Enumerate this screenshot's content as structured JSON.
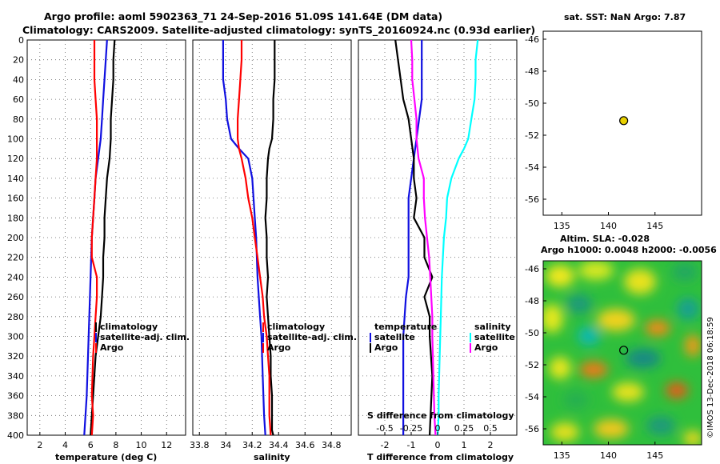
{
  "figure": {
    "title_line1": "Argo profile: aoml 5902363_71 24-Sep-2016 51.09S 141.64E (DM data)",
    "title_line2": "Climatology: CARS2009. Satellite-adjusted climatology: synTS_20160924.nc (0.93d earlier)",
    "credit": "©IMOS 13-Dec-2018 06:18:59"
  },
  "colors": {
    "climatology": "#000000",
    "satellite": "#1010e0",
    "argo": "#ff0000",
    "sat_diff": "#00ffff",
    "argo_s": "#ff00ff",
    "dot": "#e8d000"
  },
  "chart_data": [
    {
      "id": "temperature",
      "type": "line",
      "xlabel": "temperature (deg C)",
      "ylabel": "",
      "xlim": [
        1,
        13.5
      ],
      "ylim": [
        400,
        0
      ],
      "xticks": [
        2,
        4,
        6,
        8,
        10,
        12
      ],
      "yticks": [
        0,
        20,
        40,
        60,
        80,
        100,
        120,
        140,
        160,
        180,
        200,
        220,
        240,
        260,
        280,
        300,
        320,
        340,
        360,
        380,
        400
      ],
      "legend": [
        "climatology",
        "satellite-adj. clim.",
        "Argo"
      ],
      "series": [
        {
          "name": "climatology",
          "color": "black",
          "x": [
            7.9,
            7.8,
            7.8,
            7.7,
            7.6,
            7.6,
            7.5,
            7.3,
            7.2,
            7.1,
            7.1,
            7.0,
            7.0,
            6.9,
            6.8,
            6.6,
            6.4,
            6.2,
            6.0
          ],
          "y": [
            0,
            20,
            40,
            60,
            80,
            100,
            120,
            140,
            160,
            180,
            200,
            220,
            240,
            260,
            280,
            300,
            320,
            360,
            400
          ]
        },
        {
          "name": "satellite-adj. clim.",
          "color": "blue",
          "x": [
            7.3,
            7.2,
            7.1,
            7.0,
            6.9,
            6.8,
            6.6,
            6.4,
            6.3,
            6.2,
            6.1,
            6.0,
            5.9,
            5.8,
            5.7,
            5.5
          ],
          "y": [
            0,
            20,
            40,
            60,
            80,
            100,
            120,
            140,
            160,
            180,
            200,
            240,
            280,
            320,
            360,
            400
          ]
        },
        {
          "name": "Argo",
          "color": "red",
          "x": [
            6.3,
            6.3,
            6.3,
            6.4,
            6.5,
            6.5,
            6.5,
            6.4,
            6.3,
            6.2,
            6.1,
            6.1,
            6.5,
            6.5,
            6.4,
            6.3,
            6.2,
            6.1,
            6.2,
            6.1
          ],
          "y": [
            0,
            20,
            40,
            60,
            80,
            100,
            120,
            140,
            160,
            180,
            200,
            220,
            240,
            260,
            280,
            300,
            320,
            360,
            380,
            400
          ]
        }
      ]
    },
    {
      "id": "salinity",
      "type": "line",
      "xlabel": "salinity",
      "ylabel": "",
      "xlim": [
        33.75,
        34.95
      ],
      "ylim": [
        400,
        0
      ],
      "xticks": [
        33.8,
        34.0,
        34.2,
        34.4,
        34.6,
        34.8
      ],
      "xticklabels": [
        "33.8",
        "34",
        "34.2",
        "34.4",
        "34.6",
        "34.8"
      ],
      "legend": [
        "climatology",
        "satellite-adj. clim.",
        "Argo"
      ],
      "series": [
        {
          "name": "climatology",
          "color": "black",
          "x": [
            34.37,
            34.37,
            34.37,
            34.36,
            34.36,
            34.35,
            34.33,
            34.32,
            34.31,
            34.31,
            34.3,
            34.31,
            34.31,
            34.32,
            34.31,
            34.32,
            34.33,
            34.34,
            34.34,
            34.35,
            34.35,
            34.35,
            34.36
          ],
          "y": [
            0,
            20,
            40,
            60,
            80,
            100,
            110,
            120,
            140,
            160,
            180,
            200,
            220,
            240,
            260,
            280,
            300,
            320,
            340,
            360,
            380,
            395,
            400
          ]
        },
        {
          "name": "satellite-adj. clim.",
          "color": "blue",
          "x": [
            33.98,
            33.98,
            33.98,
            34.0,
            34.01,
            34.04,
            34.1,
            34.17,
            34.2,
            34.21,
            34.22,
            34.23,
            34.24,
            34.25,
            34.26,
            34.27,
            34.28,
            34.29,
            34.3
          ],
          "y": [
            0,
            20,
            40,
            60,
            80,
            100,
            110,
            120,
            140,
            160,
            180,
            200,
            240,
            260,
            280,
            300,
            340,
            380,
            400
          ]
        },
        {
          "name": "Argo",
          "color": "red",
          "x": [
            34.12,
            34.12,
            34.11,
            34.1,
            34.09,
            34.09,
            34.1,
            34.12,
            34.15,
            34.17,
            34.2,
            34.22,
            34.24,
            34.26,
            34.28,
            34.29,
            34.31,
            34.32,
            34.33,
            34.33,
            34.34
          ],
          "y": [
            0,
            20,
            40,
            60,
            80,
            100,
            110,
            120,
            140,
            160,
            180,
            200,
            220,
            240,
            260,
            280,
            300,
            320,
            340,
            380,
            400
          ]
        }
      ]
    },
    {
      "id": "difference",
      "type": "line",
      "xlabel": "T difference from climatology",
      "xlabel_top": "S difference from climatology",
      "xlim": [
        -3,
        3
      ],
      "ylim": [
        400,
        0
      ],
      "xticks": [
        -2,
        -1,
        0,
        1,
        2
      ],
      "s_xlim": [
        -0.75,
        0.75
      ],
      "s_xticks": [
        -0.5,
        -0.25,
        0,
        0.25,
        0.5
      ],
      "legend_left_title": "temperature",
      "legend_left": [
        "satellite",
        "Argo"
      ],
      "legend_right_title": "salinity",
      "legend_right": [
        "satellite",
        "Argo"
      ],
      "series": [
        {
          "name": "T satellite",
          "color": "blue",
          "x": [
            -0.6,
            -0.6,
            -0.6,
            -0.6,
            -0.7,
            -0.8,
            -0.9,
            -1.0,
            -1.1,
            -1.1,
            -1.1,
            -1.2,
            -1.3,
            -1.3,
            -1.3
          ],
          "y": [
            0,
            20,
            40,
            60,
            80,
            100,
            120,
            140,
            160,
            200,
            240,
            260,
            300,
            360,
            400
          ]
        },
        {
          "name": "T Argo",
          "color": "black",
          "x": [
            -1.6,
            -1.5,
            -1.4,
            -1.3,
            -1.1,
            -1.0,
            -0.9,
            -0.9,
            -0.8,
            -0.9,
            -0.5,
            -0.5,
            -0.2,
            -0.5,
            -0.3,
            -0.3,
            -0.2,
            -0.3
          ],
          "y": [
            0,
            20,
            40,
            60,
            80,
            100,
            120,
            140,
            160,
            180,
            200,
            220,
            240,
            260,
            280,
            300,
            340,
            400
          ]
        },
        {
          "name": "S satellite",
          "color": "cyan",
          "x": [
            0.38,
            0.36,
            0.36,
            0.35,
            0.32,
            0.29,
            0.25,
            0.2,
            0.13,
            0.09,
            0.08,
            0.06,
            0.04,
            0.03,
            0.02,
            0.01,
            0.01,
            0.0
          ],
          "y": [
            0,
            20,
            40,
            60,
            80,
            100,
            110,
            120,
            140,
            160,
            180,
            200,
            240,
            280,
            320,
            360,
            380,
            400
          ]
        },
        {
          "name": "S Argo",
          "color": "magenta",
          "x": [
            -0.25,
            -0.24,
            -0.24,
            -0.22,
            -0.2,
            -0.2,
            -0.18,
            -0.13,
            -0.13,
            -0.12,
            -0.1,
            -0.08,
            -0.07,
            -0.06,
            -0.05,
            -0.05,
            -0.04,
            -0.03,
            -0.02
          ],
          "y": [
            0,
            20,
            40,
            60,
            80,
            100,
            120,
            140,
            160,
            180,
            200,
            220,
            240,
            260,
            280,
            300,
            340,
            380,
            400
          ]
        }
      ]
    },
    {
      "id": "sst_map",
      "type": "scatter",
      "title": "sat. SST: NaN Argo: 7.87",
      "xlim": [
        133,
        150
      ],
      "ylim": [
        -57,
        -45.5
      ],
      "xticks": [
        135,
        140,
        145
      ],
      "yticks": [
        -46,
        -48,
        -50,
        -52,
        -54,
        -56
      ],
      "points": [
        {
          "x": 141.64,
          "y": -51.09
        }
      ]
    },
    {
      "id": "sla_map",
      "type": "heatmap",
      "title_line1": "Altim. SLA: -0.028",
      "title_line2": "Argo h1000: 0.0048 h2000: -0.0056",
      "xlim": [
        133,
        150
      ],
      "ylim": [
        -57,
        -45.5
      ],
      "xticks": [
        135,
        140,
        145
      ],
      "yticks": [
        -46,
        -48,
        -50,
        -52,
        -54,
        -56
      ],
      "points": [
        {
          "x": 141.64,
          "y": -51.09
        }
      ]
    }
  ]
}
